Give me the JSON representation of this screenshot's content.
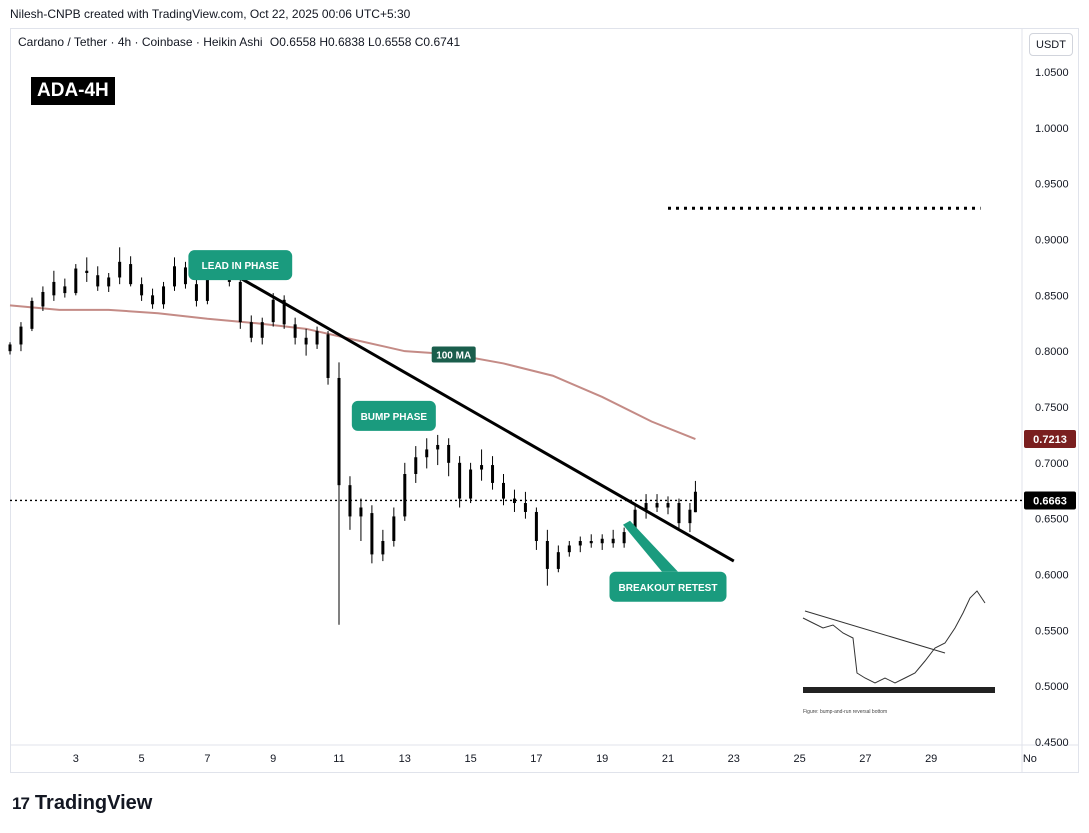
{
  "header": {
    "created_by": "Nilesh-CNPB created with TradingView.com, Oct 22, 2025 00:06 UTC+5:30"
  },
  "symbol_line": {
    "title": "Cardano / Tether · 4h · Coinbase · Heikin Ashi",
    "open": "O0.6558",
    "high": "H0.6838",
    "low": "L0.6558",
    "close": "C0.6741"
  },
  "badge": "ADA-4H",
  "currency_button": "USDT",
  "footer": {
    "brand": "TradingView",
    "logo_text": "17"
  },
  "colors": {
    "up": "#000000",
    "down": "#000000",
    "ma": "#c48b86",
    "annotation": "#1a9b7e",
    "price_tag": "#000000",
    "ma_tag": "#7a1f1f"
  },
  "chart_data": {
    "type": "candlestick",
    "symbol": "ADAUSDT",
    "interval": "4h",
    "y_axis_ticks": [
      "1.0500",
      "1.0000",
      "0.9500",
      "0.9000",
      "0.8500",
      "0.8000",
      "0.7500",
      "0.7000",
      "0.6500",
      "0.6000",
      "0.5500",
      "0.5000",
      "0.4500"
    ],
    "x_axis_ticks": [
      {
        "label": "3",
        "date": "2025-10-03"
      },
      {
        "label": "5",
        "date": "2025-10-05"
      },
      {
        "label": "7",
        "date": "2025-10-07"
      },
      {
        "label": "9",
        "date": "2025-10-09"
      },
      {
        "label": "11",
        "date": "2025-10-11"
      },
      {
        "label": "13",
        "date": "2025-10-13"
      },
      {
        "label": "15",
        "date": "2025-10-15"
      },
      {
        "label": "17",
        "date": "2025-10-17"
      },
      {
        "label": "19",
        "date": "2025-10-19"
      },
      {
        "label": "21",
        "date": "2025-10-21"
      },
      {
        "label": "23",
        "date": "2025-10-23"
      },
      {
        "label": "25",
        "date": "2025-10-25"
      },
      {
        "label": "27",
        "date": "2025-10-27"
      },
      {
        "label": "29",
        "date": "2025-10-29"
      },
      {
        "label": "No",
        "date": "2025-11-01"
      }
    ],
    "ylim": [
      0.45,
      1.07
    ],
    "last_price": 0.6663,
    "last_price_label": "0.6663",
    "ma_label": "100 MA",
    "ma_value_label": "0.7213",
    "ma_series": [
      {
        "x": "2025-10-01T00:00",
        "y": 0.841
      },
      {
        "x": "2025-10-02T12:00",
        "y": 0.837
      },
      {
        "x": "2025-10-04T00:00",
        "y": 0.837
      },
      {
        "x": "2025-10-05T12:00",
        "y": 0.834
      },
      {
        "x": "2025-10-07T00:00",
        "y": 0.829
      },
      {
        "x": "2025-10-08T12:00",
        "y": 0.825
      },
      {
        "x": "2025-10-10T00:00",
        "y": 0.82
      },
      {
        "x": "2025-10-11T12:00",
        "y": 0.81
      },
      {
        "x": "2025-10-13T00:00",
        "y": 0.8
      },
      {
        "x": "2025-10-14T12:00",
        "y": 0.797
      },
      {
        "x": "2025-10-16T00:00",
        "y": 0.789
      },
      {
        "x": "2025-10-17T12:00",
        "y": 0.778
      },
      {
        "x": "2025-10-19T00:00",
        "y": 0.759
      },
      {
        "x": "2025-10-20T12:00",
        "y": 0.737
      },
      {
        "x": "2025-10-21T20:00",
        "y": 0.7213
      }
    ],
    "candles": [
      {
        "t": "2025-10-01T00:00",
        "o": 0.8,
        "h": 0.808,
        "l": 0.797,
        "c": 0.806
      },
      {
        "t": "2025-10-01T08:00",
        "o": 0.806,
        "h": 0.826,
        "l": 0.8,
        "c": 0.822
      },
      {
        "t": "2025-10-01T16:00",
        "o": 0.82,
        "h": 0.848,
        "l": 0.818,
        "c": 0.845
      },
      {
        "t": "2025-10-02T00:00",
        "o": 0.84,
        "h": 0.858,
        "l": 0.836,
        "c": 0.853
      },
      {
        "t": "2025-10-02T08:00",
        "o": 0.85,
        "h": 0.872,
        "l": 0.845,
        "c": 0.862
      },
      {
        "t": "2025-10-02T16:00",
        "o": 0.858,
        "h": 0.865,
        "l": 0.848,
        "c": 0.852
      },
      {
        "t": "2025-10-03T00:00",
        "o": 0.852,
        "h": 0.878,
        "l": 0.85,
        "c": 0.874
      },
      {
        "t": "2025-10-03T08:00",
        "o": 0.872,
        "h": 0.884,
        "l": 0.862,
        "c": 0.87
      },
      {
        "t": "2025-10-03T16:00",
        "o": 0.868,
        "h": 0.876,
        "l": 0.854,
        "c": 0.858
      },
      {
        "t": "2025-10-04T00:00",
        "o": 0.858,
        "h": 0.87,
        "l": 0.853,
        "c": 0.866
      },
      {
        "t": "2025-10-04T08:00",
        "o": 0.866,
        "h": 0.893,
        "l": 0.86,
        "c": 0.88
      },
      {
        "t": "2025-10-04T16:00",
        "o": 0.878,
        "h": 0.885,
        "l": 0.858,
        "c": 0.86
      },
      {
        "t": "2025-10-05T00:00",
        "o": 0.86,
        "h": 0.866,
        "l": 0.845,
        "c": 0.85
      },
      {
        "t": "2025-10-05T08:00",
        "o": 0.85,
        "h": 0.856,
        "l": 0.838,
        "c": 0.842
      },
      {
        "t": "2025-10-05T16:00",
        "o": 0.842,
        "h": 0.862,
        "l": 0.838,
        "c": 0.858
      },
      {
        "t": "2025-10-06T00:00",
        "o": 0.858,
        "h": 0.884,
        "l": 0.854,
        "c": 0.876
      },
      {
        "t": "2025-10-06T08:00",
        "o": 0.875,
        "h": 0.88,
        "l": 0.856,
        "c": 0.86
      },
      {
        "t": "2025-10-06T16:00",
        "o": 0.86,
        "h": 0.864,
        "l": 0.84,
        "c": 0.845
      },
      {
        "t": "2025-10-07T00:00",
        "o": 0.845,
        "h": 0.878,
        "l": 0.842,
        "c": 0.87
      },
      {
        "t": "2025-10-07T08:00",
        "o": 0.87,
        "h": 0.886,
        "l": 0.864,
        "c": 0.878
      },
      {
        "t": "2025-10-07T16:00",
        "o": 0.878,
        "h": 0.883,
        "l": 0.858,
        "c": 0.862
      },
      {
        "t": "2025-10-08T00:00",
        "o": 0.862,
        "h": 0.866,
        "l": 0.82,
        "c": 0.826
      },
      {
        "t": "2025-10-08T08:00",
        "o": 0.826,
        "h": 0.832,
        "l": 0.808,
        "c": 0.812
      },
      {
        "t": "2025-10-08T16:00",
        "o": 0.812,
        "h": 0.83,
        "l": 0.806,
        "c": 0.826
      },
      {
        "t": "2025-10-09T00:00",
        "o": 0.826,
        "h": 0.852,
        "l": 0.822,
        "c": 0.846
      },
      {
        "t": "2025-10-09T08:00",
        "o": 0.846,
        "h": 0.85,
        "l": 0.82,
        "c": 0.824
      },
      {
        "t": "2025-10-09T16:00",
        "o": 0.824,
        "h": 0.83,
        "l": 0.806,
        "c": 0.812
      },
      {
        "t": "2025-10-10T00:00",
        "o": 0.812,
        "h": 0.82,
        "l": 0.796,
        "c": 0.806
      },
      {
        "t": "2025-10-10T08:00",
        "o": 0.806,
        "h": 0.822,
        "l": 0.802,
        "c": 0.818
      },
      {
        "t": "2025-10-10T16:00",
        "o": 0.815,
        "h": 0.818,
        "l": 0.77,
        "c": 0.776
      },
      {
        "t": "2025-10-11T00:00",
        "o": 0.776,
        "h": 0.79,
        "l": 0.555,
        "c": 0.68
      },
      {
        "t": "2025-10-11T08:00",
        "o": 0.68,
        "h": 0.688,
        "l": 0.64,
        "c": 0.652
      },
      {
        "t": "2025-10-11T16:00",
        "o": 0.652,
        "h": 0.668,
        "l": 0.63,
        "c": 0.66
      },
      {
        "t": "2025-10-12T00:00",
        "o": 0.655,
        "h": 0.662,
        "l": 0.61,
        "c": 0.618
      },
      {
        "t": "2025-10-12T08:00",
        "o": 0.618,
        "h": 0.64,
        "l": 0.612,
        "c": 0.63
      },
      {
        "t": "2025-10-12T16:00",
        "o": 0.63,
        "h": 0.66,
        "l": 0.625,
        "c": 0.652
      },
      {
        "t": "2025-10-13T00:00",
        "o": 0.652,
        "h": 0.7,
        "l": 0.648,
        "c": 0.69
      },
      {
        "t": "2025-10-13T08:00",
        "o": 0.69,
        "h": 0.715,
        "l": 0.682,
        "c": 0.705
      },
      {
        "t": "2025-10-13T16:00",
        "o": 0.705,
        "h": 0.722,
        "l": 0.695,
        "c": 0.712
      },
      {
        "t": "2025-10-14T00:00",
        "o": 0.712,
        "h": 0.725,
        "l": 0.698,
        "c": 0.716
      },
      {
        "t": "2025-10-14T08:00",
        "o": 0.716,
        "h": 0.722,
        "l": 0.688,
        "c": 0.7
      },
      {
        "t": "2025-10-14T16:00",
        "o": 0.7,
        "h": 0.706,
        "l": 0.66,
        "c": 0.668
      },
      {
        "t": "2025-10-15T00:00",
        "o": 0.668,
        "h": 0.7,
        "l": 0.664,
        "c": 0.694
      },
      {
        "t": "2025-10-15T08:00",
        "o": 0.694,
        "h": 0.712,
        "l": 0.684,
        "c": 0.698
      },
      {
        "t": "2025-10-15T16:00",
        "o": 0.698,
        "h": 0.706,
        "l": 0.676,
        "c": 0.682
      },
      {
        "t": "2025-10-16T00:00",
        "o": 0.682,
        "h": 0.69,
        "l": 0.662,
        "c": 0.668
      },
      {
        "t": "2025-10-16T08:00",
        "o": 0.668,
        "h": 0.676,
        "l": 0.656,
        "c": 0.664
      },
      {
        "t": "2025-10-16T16:00",
        "o": 0.664,
        "h": 0.674,
        "l": 0.65,
        "c": 0.656
      },
      {
        "t": "2025-10-17T00:00",
        "o": 0.656,
        "h": 0.66,
        "l": 0.622,
        "c": 0.63
      },
      {
        "t": "2025-10-17T08:00",
        "o": 0.63,
        "h": 0.64,
        "l": 0.59,
        "c": 0.605
      },
      {
        "t": "2025-10-17T16:00",
        "o": 0.605,
        "h": 0.626,
        "l": 0.602,
        "c": 0.62
      },
      {
        "t": "2025-10-18T00:00",
        "o": 0.62,
        "h": 0.63,
        "l": 0.616,
        "c": 0.626
      },
      {
        "t": "2025-10-18T08:00",
        "o": 0.626,
        "h": 0.634,
        "l": 0.62,
        "c": 0.63
      },
      {
        "t": "2025-10-18T16:00",
        "o": 0.63,
        "h": 0.636,
        "l": 0.624,
        "c": 0.628
      },
      {
        "t": "2025-10-19T00:00",
        "o": 0.628,
        "h": 0.636,
        "l": 0.622,
        "c": 0.632
      },
      {
        "t": "2025-10-19T08:00",
        "o": 0.632,
        "h": 0.64,
        "l": 0.624,
        "c": 0.628
      },
      {
        "t": "2025-10-19T16:00",
        "o": 0.628,
        "h": 0.642,
        "l": 0.624,
        "c": 0.638
      },
      {
        "t": "2025-10-20T00:00",
        "o": 0.638,
        "h": 0.664,
        "l": 0.634,
        "c": 0.658
      },
      {
        "t": "2025-10-20T08:00",
        "o": 0.658,
        "h": 0.672,
        "l": 0.65,
        "c": 0.664
      },
      {
        "t": "2025-10-20T16:00",
        "o": 0.664,
        "h": 0.672,
        "l": 0.656,
        "c": 0.66
      },
      {
        "t": "2025-10-21T00:00",
        "o": 0.66,
        "h": 0.67,
        "l": 0.654,
        "c": 0.664
      },
      {
        "t": "2025-10-21T08:00",
        "o": 0.664,
        "h": 0.668,
        "l": 0.64,
        "c": 0.646
      },
      {
        "t": "2025-10-21T16:00",
        "o": 0.646,
        "h": 0.664,
        "l": 0.638,
        "c": 0.658
      },
      {
        "t": "2025-10-21T20:00",
        "o": 0.6558,
        "h": 0.6838,
        "l": 0.6558,
        "c": 0.6741
      }
    ],
    "trendline": {
      "x1": "2025-10-06T16:00",
      "y1": 0.888,
      "x2": "2025-10-23T00:00",
      "y2": 0.612
    },
    "target_level": {
      "x1": "2025-10-21T00:00",
      "x2": "2025-10-30T12:00",
      "y": 0.928
    },
    "annotations": [
      {
        "text": "LEAD IN PHASE",
        "x": "2025-10-08T00:00",
        "y": 0.877
      },
      {
        "text": "BUMP PHASE",
        "x": "2025-10-12T16:00",
        "y": 0.742
      },
      {
        "text": "BREAKOUT RETEST",
        "x": "2025-10-21T00:00",
        "y": 0.589
      }
    ]
  }
}
